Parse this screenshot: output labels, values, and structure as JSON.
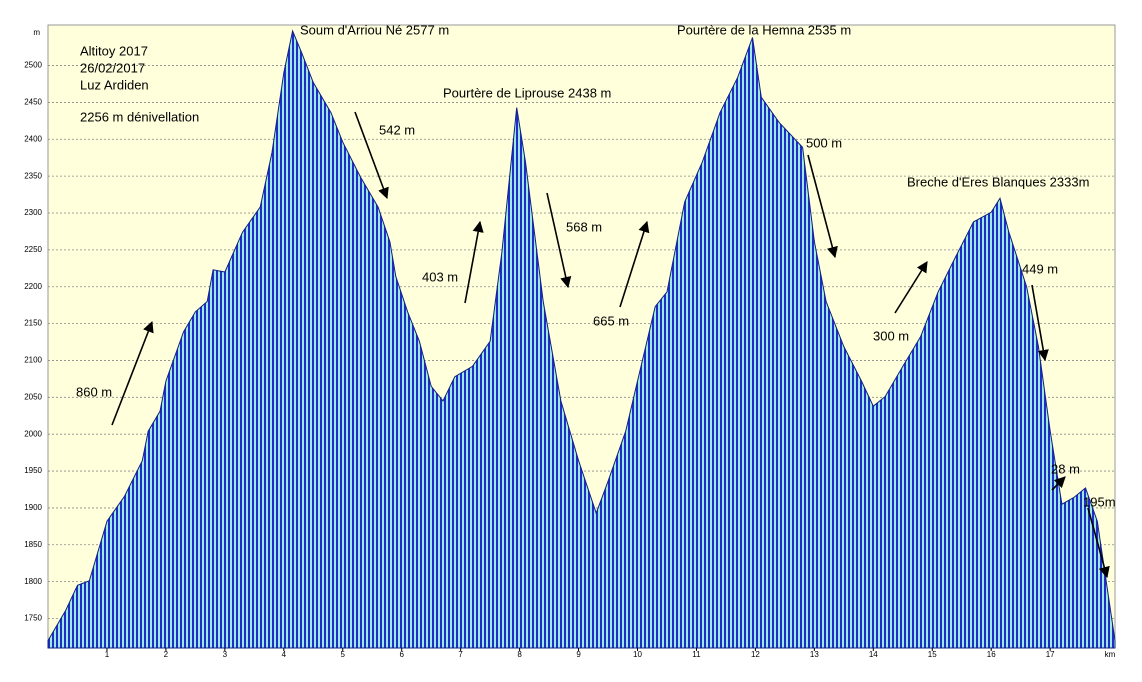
{
  "chart_data": {
    "type": "area",
    "x_label": "km",
    "y_label": "m",
    "color": "#1e2ec8",
    "stripe_color": "#9ee8e0",
    "background": "#ffffdc",
    "grid": true,
    "xlim": [
      0,
      18.1
    ],
    "ylim": [
      1710,
      2555
    ],
    "xticks": [
      1,
      2,
      3,
      4,
      5,
      6,
      7,
      8,
      9,
      10,
      11,
      12,
      13,
      14,
      15,
      16,
      17
    ],
    "yticks": [
      1750,
      1800,
      1850,
      1900,
      1950,
      2000,
      2050,
      2100,
      2150,
      2200,
      2250,
      2300,
      2350,
      2400,
      2450,
      2500
    ],
    "x": [
      0,
      0.3,
      0.5,
      0.7,
      1.0,
      1.3,
      1.6,
      1.7,
      1.9,
      2.0,
      2.3,
      2.5,
      2.7,
      2.8,
      3.0,
      3.3,
      3.6,
      3.8,
      4.0,
      4.15,
      4.3,
      4.5,
      4.8,
      5.0,
      5.3,
      5.6,
      5.8,
      5.9,
      6.1,
      6.3,
      6.5,
      6.7,
      6.9,
      7.2,
      7.5,
      7.7,
      7.95,
      8.1,
      8.4,
      8.7,
      9.0,
      9.3,
      9.5,
      9.8,
      10.0,
      10.3,
      10.5,
      10.8,
      11.1,
      11.4,
      11.7,
      11.95,
      12.1,
      12.4,
      12.8,
      13.0,
      13.2,
      13.5,
      13.8,
      14.0,
      14.2,
      14.5,
      14.8,
      15.1,
      15.4,
      15.7,
      16.0,
      16.15,
      16.3,
      16.6,
      16.8,
      17.0,
      17.2,
      17.4,
      17.6,
      17.8,
      18.0,
      18.1
    ],
    "values": [
      1720,
      1761,
      1795,
      1801,
      1882,
      1916,
      1964,
      2004,
      2031,
      2072,
      2139,
      2166,
      2180,
      2223,
      2220,
      2274,
      2308,
      2382,
      2490,
      2547,
      2518,
      2477,
      2436,
      2396,
      2349,
      2308,
      2261,
      2214,
      2166,
      2126,
      2065,
      2045,
      2078,
      2092,
      2126,
      2247,
      2443,
      2369,
      2180,
      2045,
      1964,
      1893,
      1936,
      2004,
      2072,
      2173,
      2193,
      2315,
      2369,
      2436,
      2484,
      2538,
      2457,
      2423,
      2389,
      2261,
      2180,
      2119,
      2072,
      2038,
      2051,
      2092,
      2132,
      2193,
      2241,
      2288,
      2301,
      2320,
      2274,
      2200,
      2119,
      2004,
      1905,
      1914,
      1927,
      1882,
      1774,
      1720
    ],
    "annotations": [
      "Altitoy 2017",
      "26/02/2017",
      "Luz Ardiden",
      "2256 m dénivellation",
      "Soum d'Arriou Né 2577 m",
      "Pourtère de Liprouse 2438 m",
      "Pourtère de la Hemna 2535 m",
      "Breche d'Eres Blanques 2333m",
      "860 m",
      "542 m",
      "403 m",
      "568 m",
      "665 m",
      "500 m",
      "300 m",
      "449 m",
      "28 m",
      "195m"
    ]
  }
}
